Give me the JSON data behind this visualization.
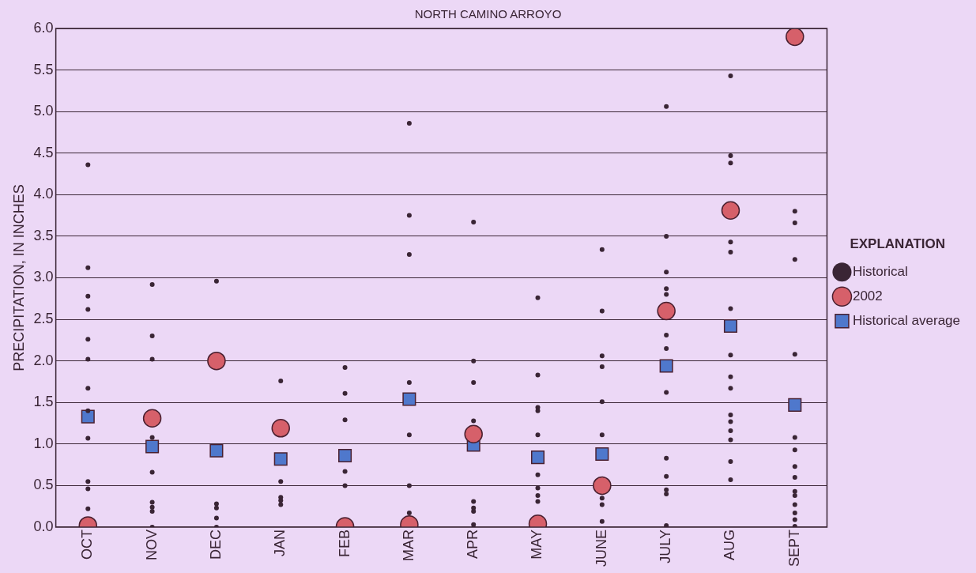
{
  "chart_data": {
    "type": "scatter",
    "title": "NORTH CAMINO ARROYO",
    "ylabel": "PRECIPITATION, IN INCHES",
    "legend_title": "EXPLANATION",
    "categories": [
      "OCT",
      "NOV",
      "DEC",
      "JAN",
      "FEB",
      "MAR",
      "APR",
      "MAY",
      "JUNE",
      "JULY",
      "AUG",
      "SEPT"
    ],
    "series": [
      {
        "name": "Historical average",
        "color": "#4f78cc",
        "marker": "square",
        "values": [
          1.33,
          0.97,
          0.92,
          0.82,
          0.86,
          1.54,
          0.99,
          0.84,
          0.88,
          1.94,
          2.42,
          1.47
        ]
      },
      {
        "name": "2002",
        "color": "#d6606a",
        "marker": "circle",
        "values": [
          0.02,
          1.31,
          2.0,
          1.19,
          0.01,
          0.03,
          1.12,
          0.04,
          0.5,
          2.6,
          3.81,
          5.9
        ]
      },
      {
        "name": "Historical",
        "color": "#3a2535",
        "marker": "circle",
        "x": [
          "OCT",
          "OCT",
          "OCT",
          "OCT",
          "OCT",
          "OCT",
          "OCT",
          "OCT",
          "OCT",
          "OCT",
          "OCT",
          "OCT",
          "NOV",
          "NOV",
          "NOV",
          "NOV",
          "NOV",
          "NOV",
          "NOV",
          "NOV",
          "NOV",
          "DEC",
          "DEC",
          "DEC",
          "DEC",
          "DEC",
          "JAN",
          "JAN",
          "JAN",
          "JAN",
          "JAN",
          "FEB",
          "FEB",
          "FEB",
          "FEB",
          "FEB",
          "MAR",
          "MAR",
          "MAR",
          "MAR",
          "MAR",
          "MAR",
          "MAR",
          "APR",
          "APR",
          "APR",
          "APR",
          "APR",
          "APR",
          "APR",
          "APR",
          "MAY",
          "MAY",
          "MAY",
          "MAY",
          "MAY",
          "MAY",
          "MAY",
          "MAY",
          "MAY",
          "JUNE",
          "JUNE",
          "JUNE",
          "JUNE",
          "JUNE",
          "JUNE",
          "JUNE",
          "JUNE",
          "JUNE",
          "JULY",
          "JULY",
          "JULY",
          "JULY",
          "JULY",
          "JULY",
          "JULY",
          "JULY",
          "JULY",
          "JULY",
          "JULY",
          "JULY",
          "JULY",
          "AUG",
          "AUG",
          "AUG",
          "AUG",
          "AUG",
          "AUG",
          "AUG",
          "AUG",
          "AUG",
          "AUG",
          "AUG",
          "AUG",
          "AUG",
          "AUG",
          "AUG",
          "SEPT",
          "SEPT",
          "SEPT",
          "SEPT",
          "SEPT",
          "SEPT",
          "SEPT",
          "SEPT",
          "SEPT",
          "SEPT",
          "SEPT",
          "SEPT",
          "SEPT",
          "SEPT"
        ],
        "values": [
          4.36,
          3.12,
          2.78,
          2.62,
          2.26,
          2.02,
          1.67,
          1.4,
          1.07,
          0.55,
          0.46,
          0.22,
          2.92,
          2.3,
          2.02,
          1.08,
          0.66,
          0.3,
          0.24,
          0.19,
          0.0,
          2.96,
          0.28,
          0.23,
          0.11,
          0.0,
          1.76,
          0.55,
          0.36,
          0.32,
          0.27,
          1.92,
          1.61,
          1.29,
          0.67,
          0.5,
          4.86,
          3.75,
          3.28,
          1.74,
          1.11,
          0.5,
          0.17,
          3.67,
          2.0,
          1.74,
          1.28,
          0.31,
          0.23,
          0.19,
          0.03,
          2.76,
          1.83,
          1.44,
          1.4,
          1.11,
          0.63,
          0.47,
          0.38,
          0.31,
          3.34,
          2.6,
          2.06,
          1.93,
          1.51,
          1.11,
          0.35,
          0.27,
          0.07,
          5.06,
          3.5,
          3.07,
          2.87,
          2.8,
          2.31,
          2.15,
          1.62,
          0.83,
          0.61,
          0.45,
          0.4,
          0.02,
          5.43,
          4.47,
          4.38,
          3.43,
          3.31,
          2.63,
          2.07,
          1.81,
          1.67,
          1.35,
          1.27,
          1.16,
          1.05,
          0.79,
          0.57,
          3.8,
          3.66,
          3.22,
          2.08,
          1.08,
          0.93,
          0.73,
          0.6,
          0.43,
          0.38,
          0.27,
          0.17,
          0.09,
          0.01
        ]
      }
    ],
    "ylim": [
      0,
      6
    ],
    "yticks": [
      {
        "value": 0,
        "label": "0.0"
      },
      {
        "value": 0.5,
        "label": "0.5"
      },
      {
        "value": 1,
        "label": "1.0"
      },
      {
        "value": 1.5,
        "label": "1.5"
      },
      {
        "value": 2,
        "label": "2.0"
      },
      {
        "value": 2.5,
        "label": "2.5"
      },
      {
        "value": 3,
        "label": "3.0"
      },
      {
        "value": 3.5,
        "label": "3.5"
      },
      {
        "value": 4,
        "label": "4.0"
      },
      {
        "value": 4.5,
        "label": "4.5"
      },
      {
        "value": 5,
        "label": "5.0"
      },
      {
        "value": 5.5,
        "label": "5.5"
      },
      {
        "value": 6,
        "label": "6.0"
      }
    ],
    "grid": "y",
    "legend": "right"
  }
}
